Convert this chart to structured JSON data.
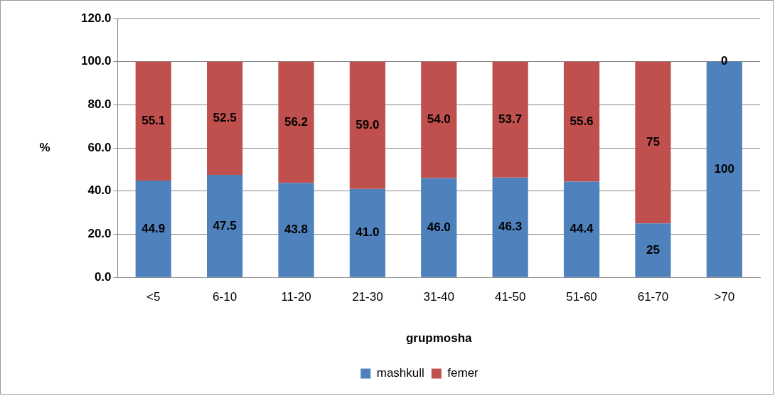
{
  "chart_data": {
    "type": "bar",
    "stacked": true,
    "xlabel": "grupmosha",
    "ylabel": "%",
    "categories": [
      "<5",
      "6-10",
      "11-20",
      "21-30",
      "31-40",
      "41-50",
      "51-60",
      "61-70",
      ">70"
    ],
    "series": [
      {
        "name": "mashkull",
        "color": "#4f81bd",
        "values": [
          44.9,
          47.5,
          43.8,
          41.0,
          46.0,
          46.3,
          44.4,
          25,
          100
        ],
        "value_labels": [
          "44.9",
          "47.5",
          "43.8",
          "41.0",
          "46.0",
          "46.3",
          "44.4",
          "25",
          "100"
        ]
      },
      {
        "name": "femer",
        "color": "#c0504d",
        "values": [
          55.1,
          52.5,
          56.2,
          59.0,
          54.0,
          53.7,
          55.6,
          75,
          0
        ],
        "value_labels": [
          "55.1",
          "52.5",
          "56.2",
          "59.0",
          "54.0",
          "53.7",
          "55.6",
          "75",
          "0"
        ]
      }
    ],
    "ylim": [
      0,
      120
    ],
    "yticks": [
      {
        "value": 0,
        "label": "0.0"
      },
      {
        "value": 20,
        "label": "20.0"
      },
      {
        "value": 40,
        "label": "40.0"
      },
      {
        "value": 60,
        "label": "60.0"
      },
      {
        "value": 80,
        "label": "80.0"
      },
      {
        "value": 100,
        "label": "100.0"
      },
      {
        "value": 120,
        "label": "120.0"
      }
    ],
    "grid": "y",
    "legend": "bottom"
  }
}
